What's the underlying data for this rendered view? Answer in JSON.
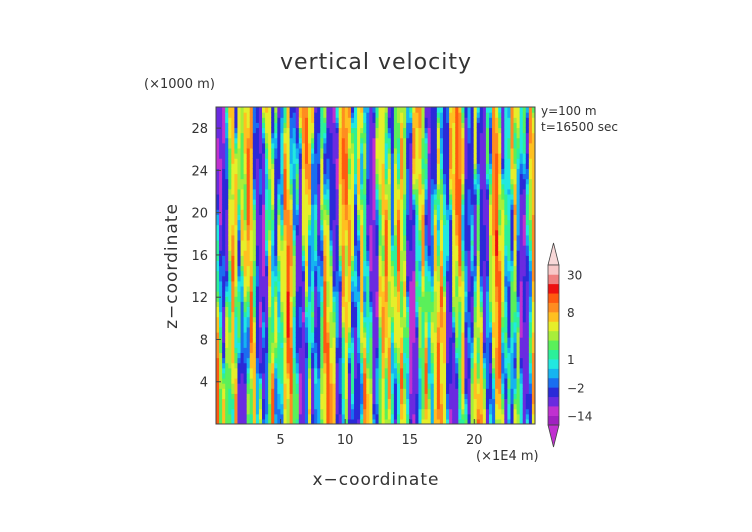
{
  "chart_data": {
    "type": "heatmap",
    "title": "vertical velocity",
    "xlabel": "x−coordinate",
    "ylabel": "z−coordinate",
    "x_units": "(×1E4 m)",
    "y_units": "(×1000 m)",
    "annotations": [
      "y=100  m",
      "t=16500 sec"
    ],
    "xlim": [
      0,
      24.7
    ],
    "ylim": [
      0,
      30
    ],
    "x_ticks": [
      5,
      10,
      15,
      20
    ],
    "y_ticks": [
      4,
      8,
      12,
      16,
      20,
      24,
      28
    ],
    "colorbar": {
      "labels": [
        "30",
        "8",
        "1",
        "−2",
        "−14"
      ],
      "label_values": [
        30,
        8,
        1,
        -2,
        -14
      ],
      "levels": [
        -20,
        -14,
        -8,
        -4,
        -2,
        -1,
        0,
        1,
        2,
        3,
        4,
        6,
        8,
        10,
        15,
        20,
        30,
        40
      ],
      "colors": [
        "#a020c0",
        "#c030d0",
        "#6a2ae0",
        "#2a2ad8",
        "#1a6ef0",
        "#16b4f0",
        "#22e8e0",
        "#2cf09a",
        "#5af05a",
        "#a8ee3a",
        "#e6ee2a",
        "#ffc020",
        "#ff8c20",
        "#ff5a10",
        "#ee1010",
        "#f08080",
        "#f8c8c8"
      ],
      "extend_min_color": "#c030d0",
      "extend_max_color": "#f8d8d8"
    },
    "field": "turbulent vertical velocity field (chaotic, columnar structures)"
  }
}
